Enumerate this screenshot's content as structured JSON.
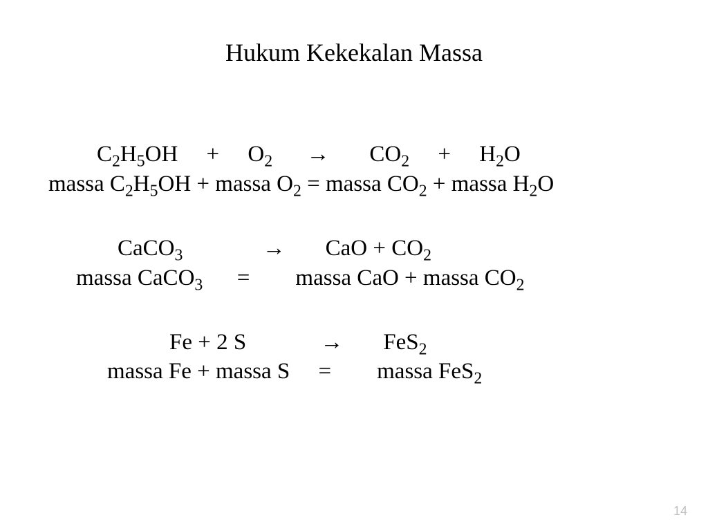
{
  "title": "Hukum Kekekalan Massa",
  "pageNumber": "14",
  "colors": {
    "background": "#ffffff",
    "text": "#000000",
    "pageNum": "#bfbfbf"
  },
  "typography": {
    "titleFontSize": 36,
    "bodyFontSize": 33,
    "fontFamily": "Times New Roman"
  },
  "equations": {
    "eq1": {
      "reaction_parts": {
        "r1": "C",
        "r1s": "2",
        "r2": "H",
        "r2s": "5",
        "r3": "OH",
        "plus1": "+",
        "r4": "O",
        "r4s": "2",
        "arrow": "→",
        "p1": "CO",
        "p1s": "2",
        "plus2": "+",
        "p2": "H",
        "p2s": "2",
        "p3": "O"
      },
      "mass_parts": {
        "m1": "massa C",
        "m1s": "2",
        "m2": "H",
        "m2s": "5",
        "m3": "OH + massa O",
        "m3s": "2",
        "eq": " = massa CO",
        "m4s": "2",
        "m5": " + massa H",
        "m5s": "2",
        "m6": "O"
      }
    },
    "eq2": {
      "reaction_parts": {
        "r1": "CaCO",
        "r1s": "3",
        "arrow": "→",
        "p1": "CaO  + CO",
        "p1s": "2"
      },
      "mass_parts": {
        "m1": "massa CaCO",
        "m1s": "3",
        "eq": "=",
        "m2": "massa CaO + massa CO",
        "m2s": "2"
      }
    },
    "eq3": {
      "reaction_parts": {
        "r1": "Fe   +   2 S",
        "arrow": "→",
        "p1": "FeS",
        "p1s": "2"
      },
      "mass_parts": {
        "m1": "massa Fe  + massa S",
        "eq": "=",
        "m2": "massa FeS",
        "m2s": "2"
      }
    }
  }
}
